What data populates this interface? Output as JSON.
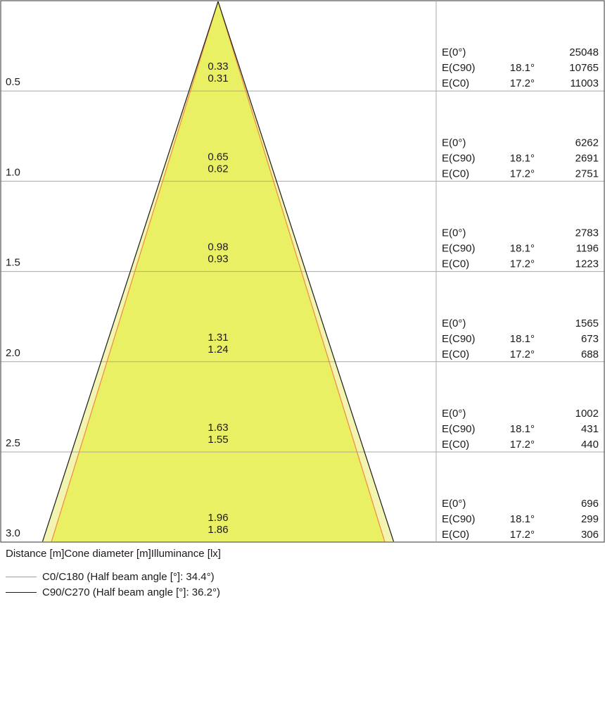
{
  "chart_data": {
    "type": "cone-diagram",
    "columns_header": [
      "Distance [m]",
      "Cone diameter [m]",
      "Illuminance [lx]"
    ],
    "rows": [
      {
        "distance": "0.5",
        "diam_c90": "0.33",
        "diam_c0": "0.31",
        "e0_label": "E(0°)",
        "e0": "25048",
        "ec90_label": "E(C90)",
        "ec90_angle": "18.1°",
        "ec90": "10765",
        "ec0_label": "E(C0)",
        "ec0_angle": "17.2°",
        "ec0": "11003"
      },
      {
        "distance": "1.0",
        "diam_c90": "0.65",
        "diam_c0": "0.62",
        "e0_label": "E(0°)",
        "e0": "6262",
        "ec90_label": "E(C90)",
        "ec90_angle": "18.1°",
        "ec90": "2691",
        "ec0_label": "E(C0)",
        "ec0_angle": "17.2°",
        "ec0": "2751"
      },
      {
        "distance": "1.5",
        "diam_c90": "0.98",
        "diam_c0": "0.93",
        "e0_label": "E(0°)",
        "e0": "2783",
        "ec90_label": "E(C90)",
        "ec90_angle": "18.1°",
        "ec90": "1196",
        "ec0_label": "E(C0)",
        "ec0_angle": "17.2°",
        "ec0": "1223"
      },
      {
        "distance": "2.0",
        "diam_c90": "1.31",
        "diam_c0": "1.24",
        "e0_label": "E(0°)",
        "e0": "1565",
        "ec90_label": "E(C90)",
        "ec90_angle": "18.1°",
        "ec90": "673",
        "ec0_label": "E(C0)",
        "ec0_angle": "17.2°",
        "ec0": "688"
      },
      {
        "distance": "2.5",
        "diam_c90": "1.63",
        "diam_c0": "1.55",
        "e0_label": "E(0°)",
        "e0": "1002",
        "ec90_label": "E(C90)",
        "ec90_angle": "18.1°",
        "ec90": "431",
        "ec0_label": "E(C0)",
        "ec0_angle": "17.2°",
        "ec0": "440"
      },
      {
        "distance": "3.0",
        "diam_c90": "1.96",
        "diam_c0": "1.86",
        "e0_label": "E(0°)",
        "e0": "696",
        "ec90_label": "E(C90)",
        "ec90_angle": "18.1°",
        "ec90": "299",
        "ec0_label": "E(C0)",
        "ec0_angle": "17.2°",
        "ec0": "306"
      }
    ],
    "half_beam_angle_c0": 34.4,
    "half_beam_angle_c90": 36.2,
    "legend": [
      {
        "label": "C0/C180 (Half beam angle [°]: 34.4°)",
        "color": "#f08a3c"
      },
      {
        "label": "C90/C270 (Half beam angle [°]: 36.2°)",
        "color": "#1a1a1a"
      }
    ],
    "colors": {
      "cone_fill": "#eaf064",
      "cone_outer_fill": "#f2f4b0",
      "grid": "#a8a8a8",
      "frame": "#555555"
    }
  }
}
